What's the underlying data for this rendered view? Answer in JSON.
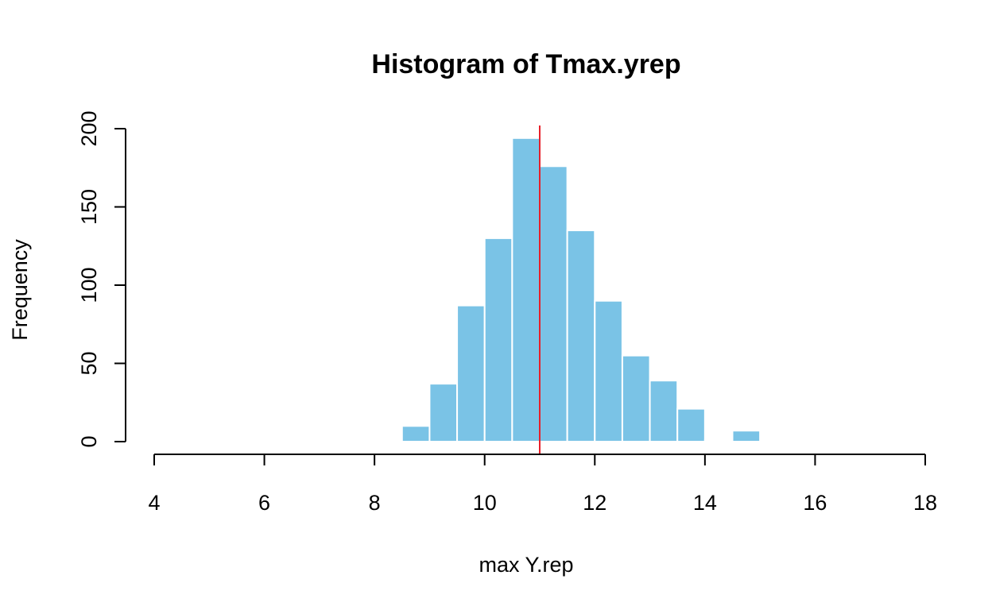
{
  "chart_data": {
    "type": "bar",
    "title": "Histogram of Tmax.yrep",
    "xlabel": "max Y.rep",
    "ylabel": "Frequency",
    "xlim": [
      4,
      18
    ],
    "ylim": [
      0,
      200
    ],
    "x_ticks": [
      "4",
      "6",
      "8",
      "10",
      "12",
      "14",
      "16",
      "18"
    ],
    "y_ticks": [
      "0",
      "50",
      "100",
      "150",
      "200"
    ],
    "bins": [
      {
        "x0": 8.0,
        "x1": 8.5,
        "count": 1
      },
      {
        "x0": 8.5,
        "x1": 9.0,
        "count": 10
      },
      {
        "x0": 9.0,
        "x1": 9.5,
        "count": 37
      },
      {
        "x0": 9.5,
        "x1": 10.0,
        "count": 87
      },
      {
        "x0": 10.0,
        "x1": 10.5,
        "count": 130
      },
      {
        "x0": 10.5,
        "x1": 11.0,
        "count": 194
      },
      {
        "x0": 11.0,
        "x1": 11.5,
        "count": 176
      },
      {
        "x0": 11.5,
        "x1": 12.0,
        "count": 135
      },
      {
        "x0": 12.0,
        "x1": 12.5,
        "count": 90
      },
      {
        "x0": 12.5,
        "x1": 13.0,
        "count": 55
      },
      {
        "x0": 13.0,
        "x1": 13.5,
        "count": 39
      },
      {
        "x0": 13.5,
        "x1": 14.0,
        "count": 21
      },
      {
        "x0": 14.0,
        "x1": 14.5,
        "count": 1
      },
      {
        "x0": 14.5,
        "x1": 15.0,
        "count": 7
      }
    ],
    "reference_line": {
      "x": 11.0,
      "color": "#e8202a"
    },
    "bar_color": "#7ac3e6",
    "bar_border_color": "#ffffff",
    "grid": false,
    "legend": "none"
  }
}
